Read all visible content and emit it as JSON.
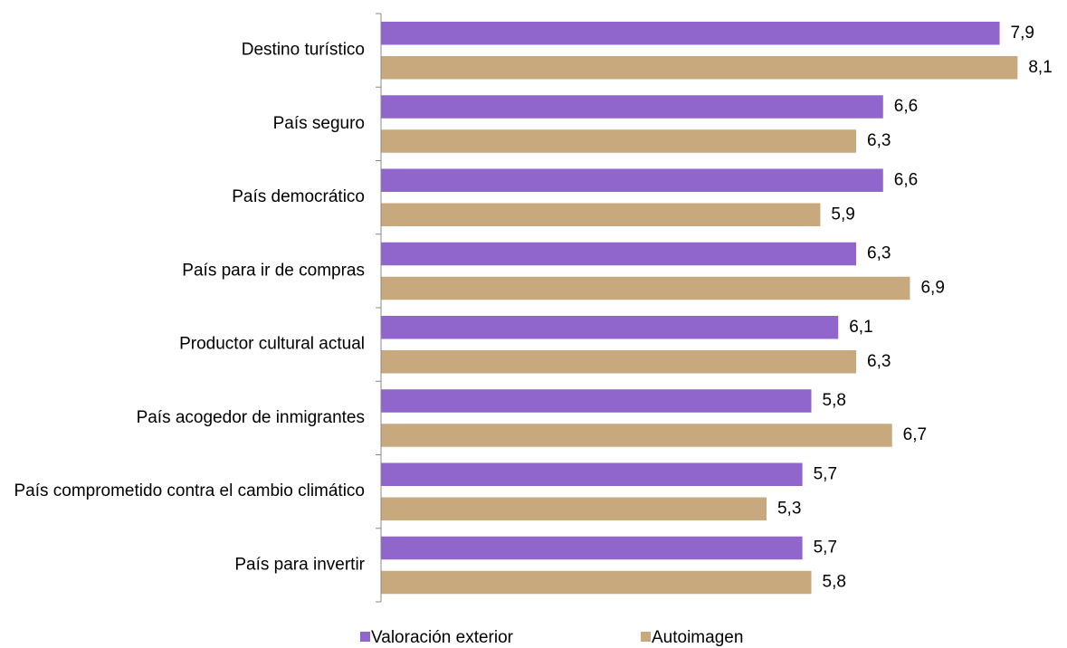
{
  "chart_data": {
    "type": "bar",
    "orientation": "horizontal",
    "categories": [
      "Destino turístico",
      "País seguro",
      "País democrático",
      "País para ir de compras",
      "Productor cultural actual",
      "País acogedor de inmigrantes",
      "País comprometido contra el cambio climático",
      "País para invertir"
    ],
    "series": [
      {
        "name": "Valoración exterior",
        "color": "#9166cc",
        "values": [
          7.9,
          6.6,
          6.6,
          6.3,
          6.1,
          5.8,
          5.7,
          5.7
        ],
        "value_labels": [
          "7,9",
          "6,6",
          "6,6",
          "6,3",
          "6,1",
          "5,8",
          "5,7",
          "5,7"
        ]
      },
      {
        "name": "Autoimagen",
        "color": "#c8a97e",
        "values": [
          8.1,
          6.3,
          5.9,
          6.9,
          6.3,
          6.7,
          5.3,
          5.8
        ],
        "value_labels": [
          "8,1",
          "6,3",
          "5,9",
          "6,9",
          "6,3",
          "6,7",
          "5,3",
          "5,8"
        ]
      }
    ],
    "xlim": [
      1,
      8.5
    ],
    "legend": "bottom"
  }
}
